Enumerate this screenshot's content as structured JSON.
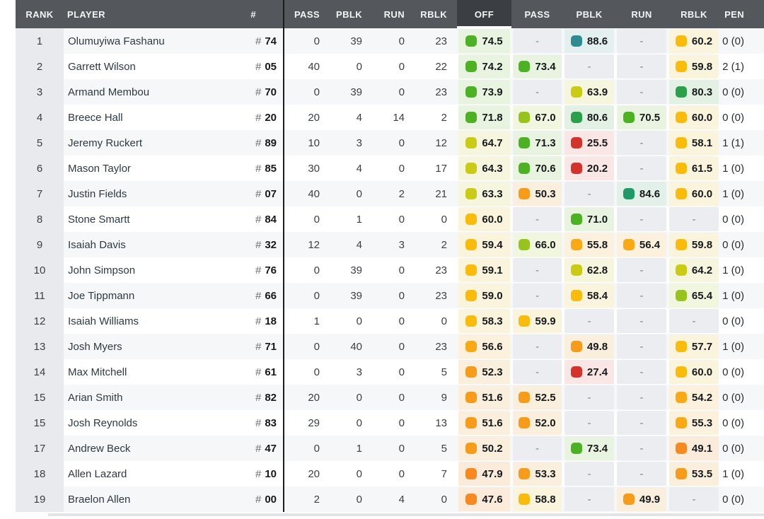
{
  "header": {
    "rank": "RANK",
    "player": "PLAYER",
    "jersey": "#",
    "snap_columns": [
      "PASS",
      "PBLK",
      "RUN",
      "RBLK"
    ],
    "grade_columns": [
      "OFF",
      "PASS",
      "PBLK",
      "RUN",
      "RBLK"
    ],
    "pen": "PEN",
    "sorted_grade_column": "OFF"
  },
  "colors": {
    "header_bg": "#54585d",
    "header_active_bg": "#3b3f44",
    "header_text": "#f3f4f5",
    "rank_col_bg": "#e8eaed",
    "row_odd_bg": "#f6f7f9",
    "row_even_bg": "#ffffff",
    "divider": "#1b1c1e",
    "dash_bg": "#ecedf0",
    "dash_text": "#7c8288",
    "bottom_bar": "#e2e3e5"
  },
  "dash_symbol": "-",
  "grade_color_scale": [
    {
      "min": 85,
      "color": "#2e8c90",
      "tint": "#e4efef"
    },
    {
      "min": 82,
      "color": "#1f9a66",
      "tint": "#e2f0e9"
    },
    {
      "min": 79.5,
      "color": "#2ba04b",
      "tint": "#e3f1e4"
    },
    {
      "min": 69.5,
      "color": "#4cb223",
      "tint": "#e9f4e0"
    },
    {
      "min": 65,
      "color": "#96c41d",
      "tint": "#f1f6df"
    },
    {
      "min": 62,
      "color": "#c9cb15",
      "tint": "#f6f6de"
    },
    {
      "min": 57.5,
      "color": "#f9bc0d",
      "tint": "#fbf4dc"
    },
    {
      "min": 54,
      "color": "#f8a915",
      "tint": "#fbf1dc"
    },
    {
      "min": 49.5,
      "color": "#f79b1b",
      "tint": "#faeedd"
    },
    {
      "min": 40,
      "color": "#f6891f",
      "tint": "#faebdb"
    },
    {
      "min": 0,
      "color": "#d2342b",
      "tint": "#f9e6e5"
    }
  ],
  "rows": [
    {
      "rank": "1",
      "name": "Olumuyiwa Fashanu",
      "jersey": "74",
      "snaps": [
        "0",
        "39",
        "0",
        "23"
      ],
      "grades": [
        "74.5",
        null,
        "88.6",
        null,
        "60.2"
      ],
      "pen": "0 (0)"
    },
    {
      "rank": "2",
      "name": "Garrett Wilson",
      "jersey": "05",
      "snaps": [
        "40",
        "0",
        "0",
        "22"
      ],
      "grades": [
        "74.2",
        "73.4",
        null,
        null,
        "59.8"
      ],
      "pen": "2 (1)"
    },
    {
      "rank": "3",
      "name": "Armand Membou",
      "jersey": "70",
      "snaps": [
        "0",
        "39",
        "0",
        "23"
      ],
      "grades": [
        "73.9",
        null,
        "63.9",
        null,
        "80.3"
      ],
      "pen": "0 (0)"
    },
    {
      "rank": "4",
      "name": "Breece Hall",
      "jersey": "20",
      "snaps": [
        "20",
        "4",
        "14",
        "2"
      ],
      "grades": [
        "71.8",
        "67.0",
        "80.6",
        "70.5",
        "60.0"
      ],
      "pen": "0 (0)"
    },
    {
      "rank": "5",
      "name": "Jeremy Ruckert",
      "jersey": "89",
      "snaps": [
        "10",
        "3",
        "0",
        "12"
      ],
      "grades": [
        "64.7",
        "71.3",
        "25.5",
        null,
        "58.1"
      ],
      "pen": "1 (1)"
    },
    {
      "rank": "6",
      "name": "Mason Taylor",
      "jersey": "85",
      "snaps": [
        "30",
        "4",
        "0",
        "17"
      ],
      "grades": [
        "64.3",
        "70.6",
        "20.2",
        null,
        "61.5"
      ],
      "pen": "1 (0)"
    },
    {
      "rank": "7",
      "name": "Justin Fields",
      "jersey": "07",
      "snaps": [
        "40",
        "0",
        "2",
        "21"
      ],
      "grades": [
        "63.3",
        "50.3",
        null,
        "84.6",
        "60.0"
      ],
      "pen": "1 (0)"
    },
    {
      "rank": "8",
      "name": "Stone Smartt",
      "jersey": "84",
      "snaps": [
        "0",
        "1",
        "0",
        "0"
      ],
      "grades": [
        "60.0",
        null,
        "71.0",
        null,
        null
      ],
      "pen": "0 (0)"
    },
    {
      "rank": "9",
      "name": "Isaiah Davis",
      "jersey": "32",
      "snaps": [
        "12",
        "4",
        "3",
        "2"
      ],
      "grades": [
        "59.4",
        "66.0",
        "55.8",
        "56.4",
        "59.8"
      ],
      "pen": "0 (0)"
    },
    {
      "rank": "10",
      "name": "John Simpson",
      "jersey": "76",
      "snaps": [
        "0",
        "39",
        "0",
        "23"
      ],
      "grades": [
        "59.1",
        null,
        "62.8",
        null,
        "64.2"
      ],
      "pen": "1 (0)"
    },
    {
      "rank": "11",
      "name": "Joe Tippmann",
      "jersey": "66",
      "snaps": [
        "0",
        "39",
        "0",
        "23"
      ],
      "grades": [
        "59.0",
        null,
        "58.4",
        null,
        "65.4"
      ],
      "pen": "1 (0)"
    },
    {
      "rank": "12",
      "name": "Isaiah Williams",
      "jersey": "18",
      "snaps": [
        "1",
        "0",
        "0",
        "0"
      ],
      "grades": [
        "58.3",
        "59.9",
        null,
        null,
        null
      ],
      "pen": "0 (0)"
    },
    {
      "rank": "13",
      "name": "Josh Myers",
      "jersey": "71",
      "snaps": [
        "0",
        "40",
        "0",
        "23"
      ],
      "grades": [
        "56.6",
        null,
        "49.8",
        null,
        "57.7"
      ],
      "pen": "1 (0)"
    },
    {
      "rank": "14",
      "name": "Max Mitchell",
      "jersey": "61",
      "snaps": [
        "0",
        "3",
        "0",
        "5"
      ],
      "grades": [
        "52.3",
        null,
        "27.4",
        null,
        "60.0"
      ],
      "pen": "0 (0)"
    },
    {
      "rank": "15",
      "name": "Arian Smith",
      "jersey": "82",
      "snaps": [
        "20",
        "0",
        "0",
        "9"
      ],
      "grades": [
        "51.6",
        "52.5",
        null,
        null,
        "54.2"
      ],
      "pen": "0 (0)"
    },
    {
      "rank": "15",
      "name": "Josh Reynolds",
      "jersey": "83",
      "snaps": [
        "29",
        "0",
        "0",
        "13"
      ],
      "grades": [
        "51.6",
        "52.0",
        null,
        null,
        "55.3"
      ],
      "pen": "0 (0)"
    },
    {
      "rank": "17",
      "name": "Andrew Beck",
      "jersey": "47",
      "snaps": [
        "0",
        "1",
        "0",
        "5"
      ],
      "grades": [
        "50.2",
        null,
        "73.4",
        null,
        "49.1"
      ],
      "pen": "0 (0)"
    },
    {
      "rank": "18",
      "name": "Allen Lazard",
      "jersey": "10",
      "snaps": [
        "20",
        "0",
        "0",
        "7"
      ],
      "grades": [
        "47.9",
        "53.3",
        null,
        null,
        "53.5"
      ],
      "pen": "1 (0)"
    },
    {
      "rank": "19",
      "name": "Braelon Allen",
      "jersey": "00",
      "snaps": [
        "2",
        "0",
        "4",
        "0"
      ],
      "grades": [
        "47.6",
        "58.8",
        null,
        "49.9",
        null
      ],
      "pen": "0 (0)"
    }
  ]
}
